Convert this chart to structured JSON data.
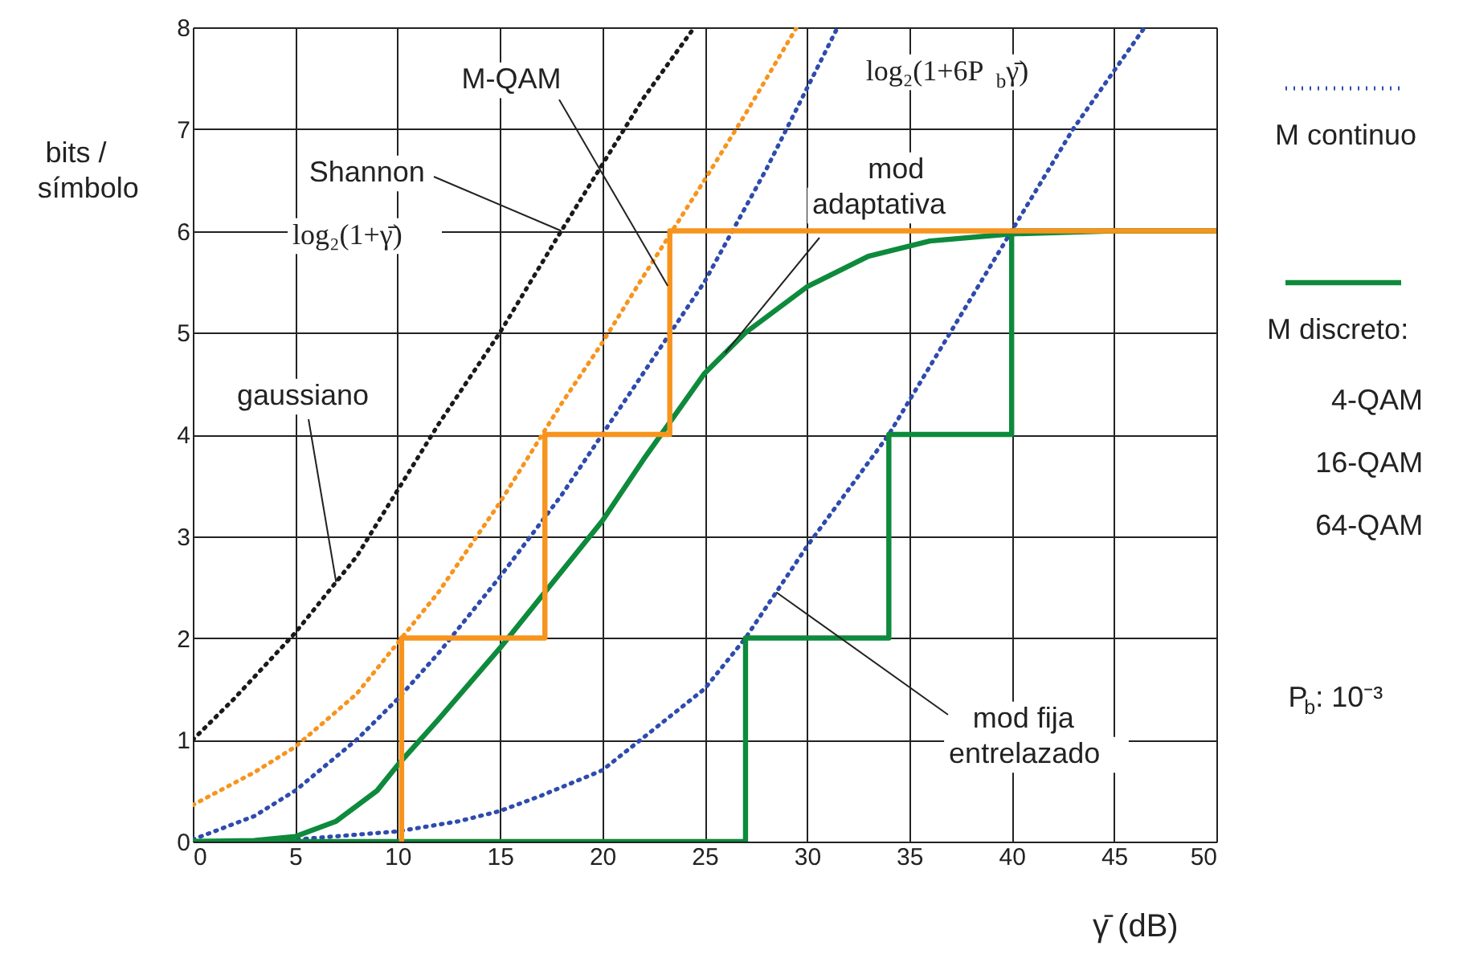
{
  "chart_data": {
    "type": "line",
    "xlabel": "γ̄ (dB)",
    "ylabel": "bits /\nsímbolo",
    "xlim": [
      0,
      50
    ],
    "ylim": [
      0,
      8
    ],
    "xticks": [
      0,
      5,
      10,
      15,
      20,
      25,
      30,
      35,
      40,
      45,
      50
    ],
    "yticks": [
      0,
      1,
      2,
      3,
      4,
      5,
      6,
      7,
      8
    ],
    "grid": true,
    "legend": "right",
    "series": [
      {
        "color": "#1a1a1a",
        "line_style": "dotted",
        "x": [
          0,
          2,
          5,
          8,
          10,
          12,
          15,
          18,
          20,
          22,
          24.5
        ],
        "values": [
          1,
          1.4,
          2.05,
          2.8,
          3.45,
          4.1,
          5.0,
          6.0,
          6.65,
          7.3,
          8.0
        ]
      },
      {
        "color": "#f7941d",
        "line_style": "dotted",
        "x": [
          0,
          3,
          5,
          8,
          10,
          12,
          15,
          18,
          20,
          22,
          25,
          27,
          29.5
        ],
        "values": [
          0.36,
          0.68,
          0.93,
          1.45,
          1.95,
          2.45,
          3.33,
          4.3,
          4.9,
          5.55,
          6.5,
          7.15,
          8.0
        ]
      },
      {
        "name": "M continuo",
        "color": "#2e4bad",
        "line_style": "dotted",
        "x": [
          0,
          3,
          5,
          8,
          10,
          12,
          15,
          18,
          20,
          22,
          25,
          28,
          31.5
        ],
        "values": [
          0.02,
          0.25,
          0.5,
          1.0,
          1.4,
          1.85,
          2.6,
          3.4,
          4.0,
          4.6,
          5.5,
          6.6,
          8.0
        ]
      },
      {
        "color": "#2e4bad",
        "line_style": "dotted",
        "x": [
          0,
          5,
          10,
          13,
          15,
          17,
          20,
          22.5,
          25,
          27,
          30,
          34,
          37,
          40,
          43,
          46.5
        ],
        "values": [
          0,
          0.02,
          0.1,
          0.2,
          0.3,
          0.45,
          0.7,
          1.1,
          1.5,
          2.0,
          2.9,
          4.0,
          5.0,
          6.0,
          7.0,
          8.0
        ]
      },
      {
        "name": "M discreto:",
        "color": "#0e8a3c",
        "line_style": "solid",
        "x": [
          0,
          3,
          5,
          7,
          9,
          10,
          12,
          15,
          17,
          20,
          22,
          25,
          27,
          30,
          33,
          36,
          40,
          45,
          50
        ],
        "values": [
          0,
          0.01,
          0.05,
          0.2,
          0.5,
          0.75,
          1.2,
          1.9,
          2.4,
          3.15,
          3.75,
          4.6,
          5.0,
          5.45,
          5.75,
          5.9,
          5.97,
          6.0,
          6.0
        ]
      },
      {
        "color": "#0e8a3c",
        "line_style": "solid",
        "x": [
          0,
          27,
          27,
          34,
          34,
          40,
          40,
          50
        ],
        "values": [
          0,
          0,
          2,
          2,
          4,
          4,
          6,
          6
        ]
      },
      {
        "color": "#f7941d",
        "line_style": "solid",
        "x": [
          10.2,
          10.2,
          17.2,
          17.2,
          23.3,
          23.3,
          50
        ],
        "values": [
          0,
          2,
          2,
          4,
          4,
          6,
          6
        ]
      }
    ],
    "annotations": [
      {
        "text": "M-QAM",
        "x": 23.2,
        "y": 5.46
      },
      {
        "text": "Shannon",
        "x": 18,
        "y": 6.0
      },
      "log₂(1+γ̄)",
      {
        "text": "mod\nadaptativa",
        "x": 26,
        "y": 4.8
      },
      {
        "text": "gaussiano",
        "x": 7,
        "y": 2.55
      },
      "log₂(1+6P$_{b}$γ̄)",
      {
        "text": "mod fija\nentrelazado",
        "x": 28.5,
        "y": 2.45
      },
      "4-QAM",
      "16-QAM",
      "64-QAM",
      "P$_{b}$: 10⁻³"
    ]
  }
}
